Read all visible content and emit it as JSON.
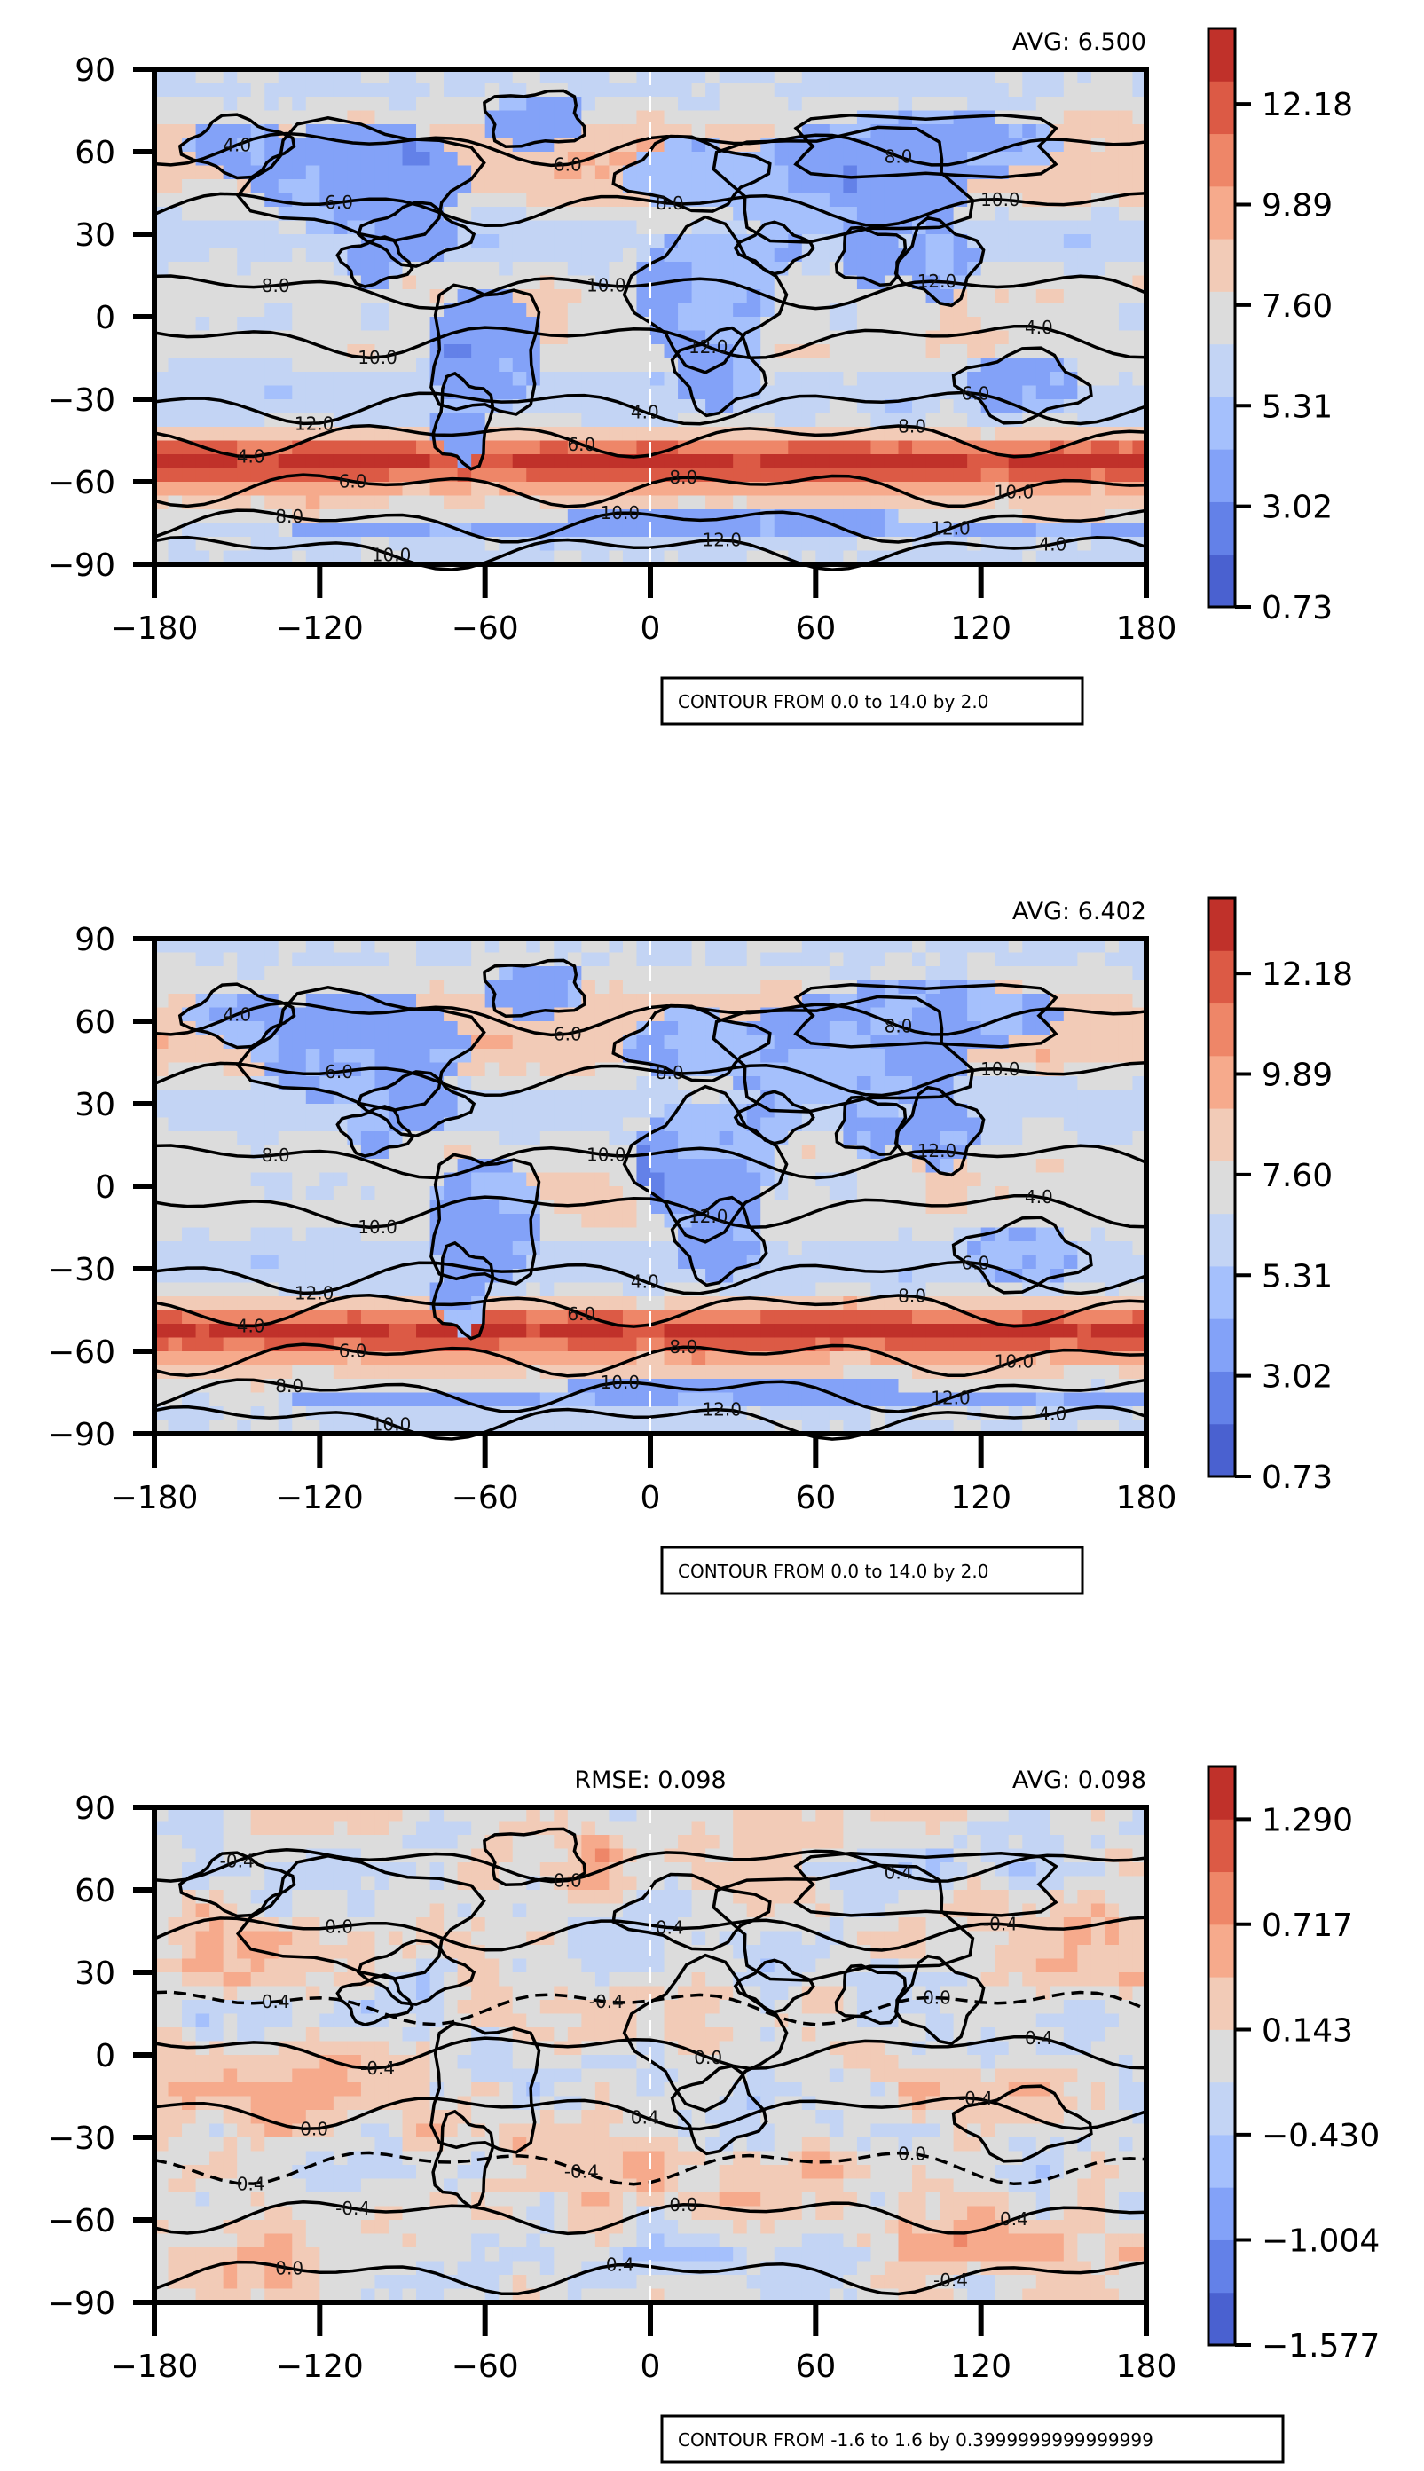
{
  "chart_data": [
    {
      "type": "heatmap",
      "title": "",
      "stat_right": "AVG: 6.500",
      "stat_center": "",
      "note": "CONTOUR FROM 0.0 to 14.0 by 2.0",
      "x_ticks": [
        "−180",
        "−120",
        "−60",
        "0",
        "60",
        "120",
        "180"
      ],
      "y_ticks": [
        "90",
        "60",
        "30",
        "0",
        "−30",
        "−60",
        "−90"
      ],
      "xlim": [
        -180,
        180
      ],
      "ylim": [
        -90,
        90
      ],
      "colorbar_ticks": [
        "0.73",
        "3.02",
        "5.31",
        "7.60",
        "9.89",
        "12.18"
      ],
      "colorbar_range": [
        0.73,
        13.9
      ],
      "contour_levels": [
        0,
        2,
        4,
        6,
        8,
        10,
        12,
        14
      ],
      "contour_labels": [
        "4.0",
        "6.0",
        "8.0",
        "10.0",
        "12.0"
      ],
      "colormap": [
        "#4a61d0",
        "#6381e8",
        "#83a2f8",
        "#a5c0fc",
        "#c3d4f4",
        "#dcdcdc",
        "#f2cbb7",
        "#f6aa8c",
        "#ee8668",
        "#dc5a45",
        "#c0312a"
      ]
    },
    {
      "type": "heatmap",
      "title": "",
      "stat_right": "AVG: 6.402",
      "stat_center": "",
      "note": "CONTOUR FROM 0.0 to 14.0 by 2.0",
      "x_ticks": [
        "−180",
        "−120",
        "−60",
        "0",
        "60",
        "120",
        "180"
      ],
      "y_ticks": [
        "90",
        "60",
        "30",
        "0",
        "−30",
        "−60",
        "−90"
      ],
      "xlim": [
        -180,
        180
      ],
      "ylim": [
        -90,
        90
      ],
      "colorbar_ticks": [
        "0.73",
        "3.02",
        "5.31",
        "7.60",
        "9.89",
        "12.18"
      ],
      "colorbar_range": [
        0.73,
        13.9
      ],
      "contour_levels": [
        0,
        2,
        4,
        6,
        8,
        10,
        12,
        14
      ],
      "contour_labels": [
        "4.0",
        "6.0",
        "8.0",
        "10.0",
        "12.0"
      ],
      "colormap": [
        "#4a61d0",
        "#6381e8",
        "#83a2f8",
        "#a5c0fc",
        "#c3d4f4",
        "#dcdcdc",
        "#f2cbb7",
        "#f6aa8c",
        "#ee8668",
        "#dc5a45",
        "#c0312a"
      ]
    },
    {
      "type": "heatmap",
      "title": "",
      "stat_right": "AVG: 0.098",
      "stat_center": "RMSE: 0.098",
      "note": "CONTOUR FROM -1.6 to 1.6 by 0.3999999999999999",
      "x_ticks": [
        "−180",
        "−120",
        "−60",
        "0",
        "60",
        "120",
        "180"
      ],
      "y_ticks": [
        "90",
        "60",
        "30",
        "0",
        "−30",
        "−60",
        "−90"
      ],
      "xlim": [
        -180,
        180
      ],
      "ylim": [
        -90,
        90
      ],
      "colorbar_ticks": [
        "−1.577",
        "−1.004",
        "−0.430",
        "0.143",
        "0.717",
        "1.290"
      ],
      "colorbar_range": [
        -1.577,
        1.577
      ],
      "contour_levels": [
        -1.6,
        -1.2,
        -0.8,
        -0.4,
        0.0,
        0.4,
        0.8,
        1.2,
        1.6
      ],
      "contour_labels": [
        "-0.4",
        "0.0",
        "0.4"
      ],
      "colormap": [
        "#4a61d0",
        "#6381e8",
        "#83a2f8",
        "#a5c0fc",
        "#c3d4f4",
        "#dcdcdc",
        "#f2cbb7",
        "#f6aa8c",
        "#ee8668",
        "#dc5a45",
        "#c0312a"
      ]
    }
  ]
}
